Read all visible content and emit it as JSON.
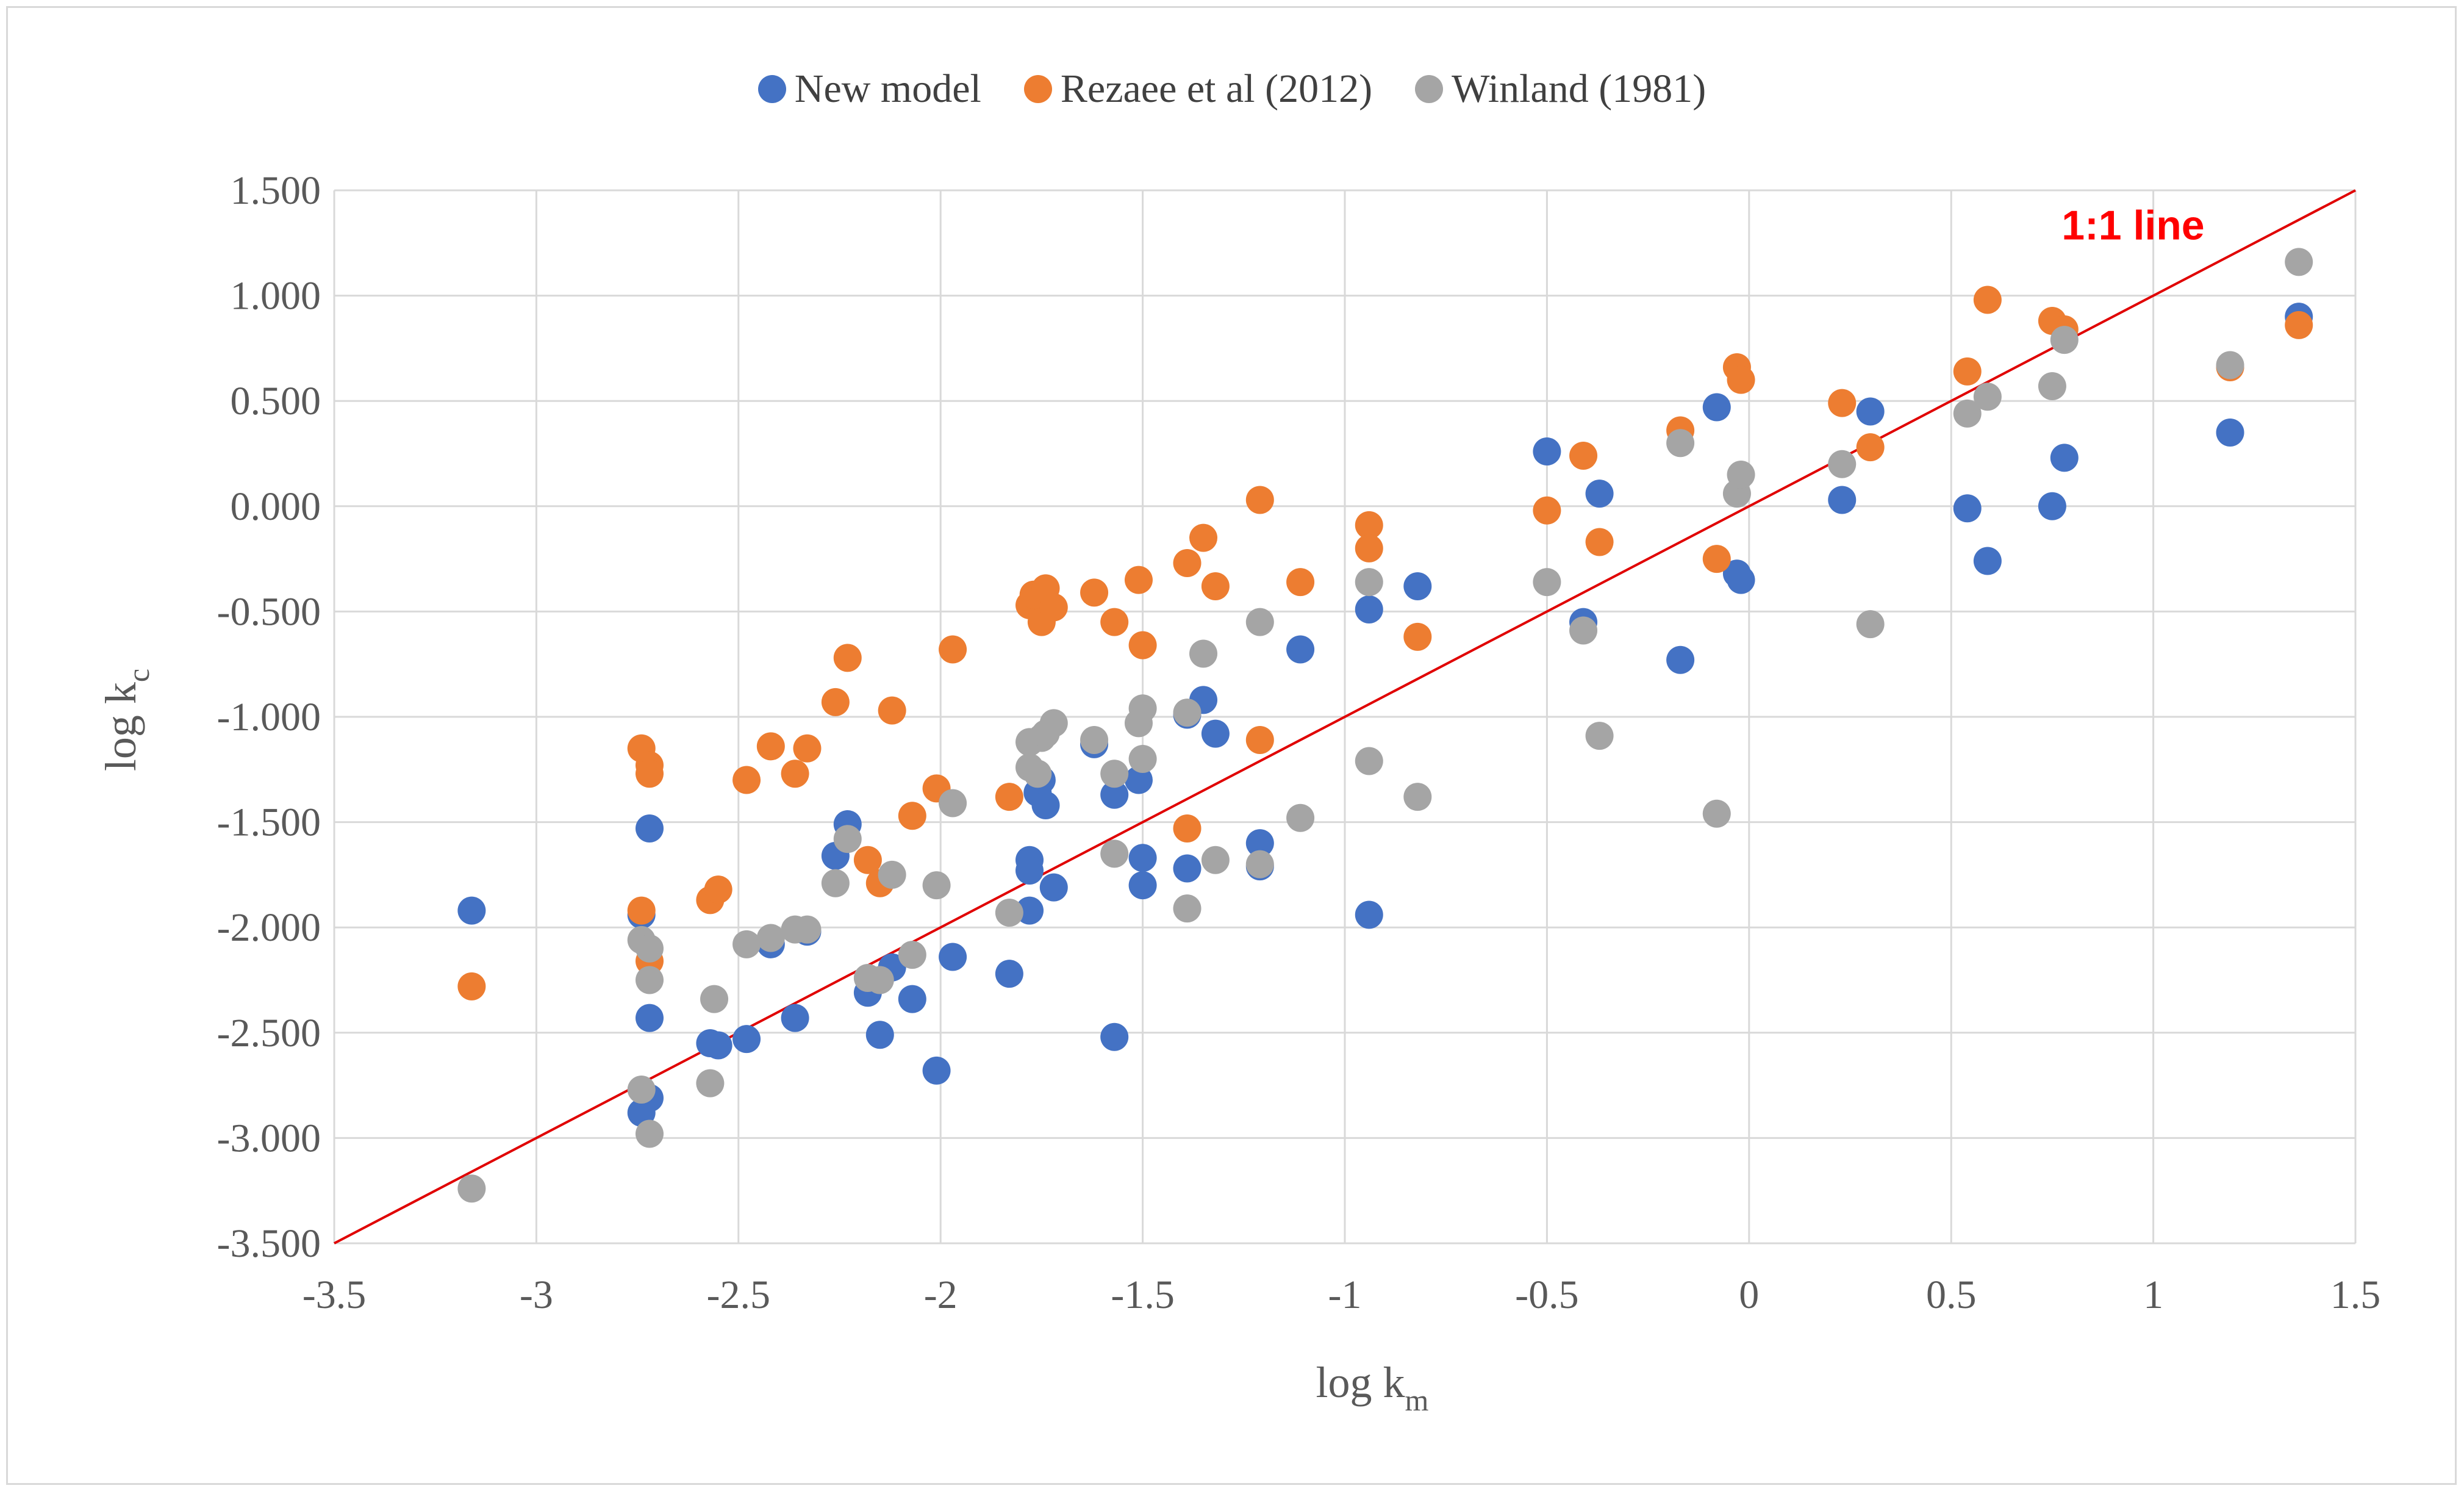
{
  "chart_data": {
    "type": "scatter",
    "title": "",
    "xlabel": "log k",
    "xlabel_sub": "m",
    "ylabel": "log k",
    "ylabel_sub": "c",
    "xlim": [
      -3.5,
      1.5
    ],
    "ylim": [
      -3.5,
      1.5
    ],
    "x_ticks": [
      "-3.5",
      "-3",
      "-2.5",
      "-2",
      "-1.5",
      "-1",
      "-0.5",
      "0",
      "0.5",
      "1",
      "1.5"
    ],
    "y_ticks": [
      "1.500",
      "1.000",
      "0.500",
      "0.000",
      "-0.500",
      "-1.000",
      "-1.500",
      "-2.000",
      "-2.500",
      "-3.000",
      "-3.500"
    ],
    "grid": true,
    "legend_position": "top-center",
    "annotation": {
      "text": "1:1 line",
      "color": "#ff0000",
      "x": 0.95,
      "y": 1.33
    },
    "reference_line": {
      "name": "1:1 line",
      "color": "#e00000",
      "points": [
        [
          -3.5,
          -3.5
        ],
        [
          1.5,
          1.5
        ]
      ]
    },
    "series": [
      {
        "name": "New model",
        "color": "#4472c4",
        "points": [
          [
            -3.16,
            -1.92
          ],
          [
            -2.74,
            -1.94
          ],
          [
            -2.72,
            -1.53
          ],
          [
            -2.72,
            -2.43
          ],
          [
            -2.72,
            -2.81
          ],
          [
            -2.74,
            -2.88
          ],
          [
            -2.57,
            -2.55
          ],
          [
            -2.55,
            -2.56
          ],
          [
            -2.48,
            -2.53
          ],
          [
            -2.42,
            -2.08
          ],
          [
            -2.36,
            -2.43
          ],
          [
            -2.33,
            -2.02
          ],
          [
            -2.26,
            -1.66
          ],
          [
            -2.23,
            -1.51
          ],
          [
            -2.18,
            -2.31
          ],
          [
            -2.15,
            -2.51
          ],
          [
            -2.12,
            -2.19
          ],
          [
            -2.07,
            -2.34
          ],
          [
            -2.01,
            -2.68
          ],
          [
            -1.97,
            -2.14
          ],
          [
            -1.83,
            -2.22
          ],
          [
            -1.78,
            -1.68
          ],
          [
            -1.78,
            -1.73
          ],
          [
            -1.78,
            -1.92
          ],
          [
            -1.76,
            -1.36
          ],
          [
            -1.75,
            -1.3
          ],
          [
            -1.74,
            -1.42
          ],
          [
            -1.72,
            -1.81
          ],
          [
            -1.62,
            -1.13
          ],
          [
            -1.57,
            -1.37
          ],
          [
            -1.57,
            -2.52
          ],
          [
            -1.51,
            -1.3
          ],
          [
            -1.5,
            -1.67
          ],
          [
            -1.5,
            -1.8
          ],
          [
            -1.39,
            -0.99
          ],
          [
            -1.39,
            -1.72
          ],
          [
            -1.35,
            -0.92
          ],
          [
            -1.32,
            -1.08
          ],
          [
            -1.21,
            -1.6
          ],
          [
            -1.21,
            -1.71
          ],
          [
            -1.11,
            -0.68
          ],
          [
            -0.94,
            -0.49
          ],
          [
            -0.94,
            -1.94
          ],
          [
            -0.82,
            -0.38
          ],
          [
            -0.5,
            0.26
          ],
          [
            -0.41,
            -0.55
          ],
          [
            -0.37,
            0.06
          ],
          [
            -0.17,
            -0.73
          ],
          [
            -0.08,
            0.47
          ],
          [
            -0.03,
            -0.32
          ],
          [
            -0.02,
            -0.35
          ],
          [
            0.23,
            0.03
          ],
          [
            0.3,
            0.45
          ],
          [
            0.54,
            -0.01
          ],
          [
            0.59,
            -0.26
          ],
          [
            0.75,
            0.0
          ],
          [
            0.78,
            0.23
          ],
          [
            1.19,
            0.35
          ],
          [
            1.36,
            0.9
          ]
        ]
      },
      {
        "name": "Rezaee et al (2012)",
        "color": "#ed7d31",
        "points": [
          [
            -3.16,
            -2.28
          ],
          [
            -2.74,
            -1.15
          ],
          [
            -2.72,
            -1.23
          ],
          [
            -2.72,
            -1.27
          ],
          [
            -2.74,
            -1.92
          ],
          [
            -2.72,
            -2.16
          ],
          [
            -2.57,
            -1.87
          ],
          [
            -2.55,
            -1.82
          ],
          [
            -2.48,
            -1.3
          ],
          [
            -2.42,
            -1.14
          ],
          [
            -2.36,
            -1.27
          ],
          [
            -2.33,
            -1.15
          ],
          [
            -2.26,
            -0.93
          ],
          [
            -2.23,
            -0.72
          ],
          [
            -2.18,
            -1.68
          ],
          [
            -2.15,
            -1.79
          ],
          [
            -2.12,
            -0.97
          ],
          [
            -2.07,
            -1.47
          ],
          [
            -2.01,
            -1.34
          ],
          [
            -1.97,
            -0.68
          ],
          [
            -1.83,
            -1.38
          ],
          [
            -1.78,
            -0.47
          ],
          [
            -1.77,
            -0.42
          ],
          [
            -1.75,
            -0.55
          ],
          [
            -1.74,
            -0.39
          ],
          [
            -1.72,
            -0.48
          ],
          [
            -1.62,
            -0.41
          ],
          [
            -1.57,
            -0.55
          ],
          [
            -1.51,
            -0.35
          ],
          [
            -1.5,
            -0.66
          ],
          [
            -1.39,
            -0.27
          ],
          [
            -1.39,
            -1.53
          ],
          [
            -1.35,
            -0.15
          ],
          [
            -1.32,
            -0.38
          ],
          [
            -1.21,
            0.03
          ],
          [
            -1.21,
            -1.11
          ],
          [
            -1.11,
            -0.36
          ],
          [
            -0.94,
            -0.09
          ],
          [
            -0.94,
            -0.2
          ],
          [
            -0.82,
            -0.62
          ],
          [
            -0.5,
            -0.02
          ],
          [
            -0.41,
            0.24
          ],
          [
            -0.37,
            -0.17
          ],
          [
            -0.17,
            0.36
          ],
          [
            -0.08,
            -0.25
          ],
          [
            -0.03,
            0.66
          ],
          [
            -0.02,
            0.6
          ],
          [
            0.23,
            0.49
          ],
          [
            0.3,
            0.28
          ],
          [
            0.54,
            0.64
          ],
          [
            0.59,
            0.98
          ],
          [
            0.75,
            0.88
          ],
          [
            0.78,
            0.84
          ],
          [
            1.19,
            0.66
          ],
          [
            1.36,
            0.86
          ]
        ]
      },
      {
        "name": "Winland (1981)",
        "color": "#a5a5a5",
        "points": [
          [
            -3.16,
            -3.24
          ],
          [
            -2.74,
            -2.06
          ],
          [
            -2.72,
            -2.1
          ],
          [
            -2.72,
            -2.25
          ],
          [
            -2.74,
            -2.77
          ],
          [
            -2.72,
            -2.98
          ],
          [
            -2.57,
            -2.74
          ],
          [
            -2.56,
            -2.34
          ],
          [
            -2.48,
            -2.08
          ],
          [
            -2.42,
            -2.05
          ],
          [
            -2.36,
            -2.01
          ],
          [
            -2.33,
            -2.01
          ],
          [
            -2.26,
            -1.79
          ],
          [
            -2.23,
            -1.58
          ],
          [
            -2.18,
            -2.24
          ],
          [
            -2.15,
            -2.25
          ],
          [
            -2.12,
            -1.75
          ],
          [
            -2.07,
            -2.13
          ],
          [
            -2.01,
            -1.8
          ],
          [
            -1.97,
            -1.41
          ],
          [
            -1.83,
            -1.93
          ],
          [
            -1.78,
            -1.24
          ],
          [
            -1.78,
            -1.12
          ],
          [
            -1.76,
            -1.27
          ],
          [
            -1.75,
            -1.1
          ],
          [
            -1.74,
            -1.08
          ],
          [
            -1.72,
            -1.03
          ],
          [
            -1.62,
            -1.11
          ],
          [
            -1.57,
            -1.27
          ],
          [
            -1.57,
            -1.65
          ],
          [
            -1.51,
            -1.03
          ],
          [
            -1.5,
            -0.96
          ],
          [
            -1.5,
            -1.2
          ],
          [
            -1.39,
            -0.98
          ],
          [
            -1.39,
            -1.91
          ],
          [
            -1.35,
            -0.7
          ],
          [
            -1.32,
            -1.68
          ],
          [
            -1.21,
            -0.55
          ],
          [
            -1.21,
            -1.7
          ],
          [
            -1.11,
            -1.48
          ],
          [
            -0.94,
            -0.36
          ],
          [
            -0.94,
            -1.21
          ],
          [
            -0.82,
            -1.38
          ],
          [
            -0.5,
            -0.36
          ],
          [
            -0.41,
            -0.59
          ],
          [
            -0.37,
            -1.09
          ],
          [
            -0.17,
            0.3
          ],
          [
            -0.08,
            -1.46
          ],
          [
            -0.03,
            0.06
          ],
          [
            -0.02,
            0.15
          ],
          [
            0.23,
            0.2
          ],
          [
            0.3,
            -0.56
          ],
          [
            0.54,
            0.44
          ],
          [
            0.59,
            0.52
          ],
          [
            0.75,
            0.57
          ],
          [
            0.78,
            0.79
          ],
          [
            1.19,
            0.67
          ],
          [
            1.36,
            1.16
          ]
        ]
      }
    ]
  }
}
